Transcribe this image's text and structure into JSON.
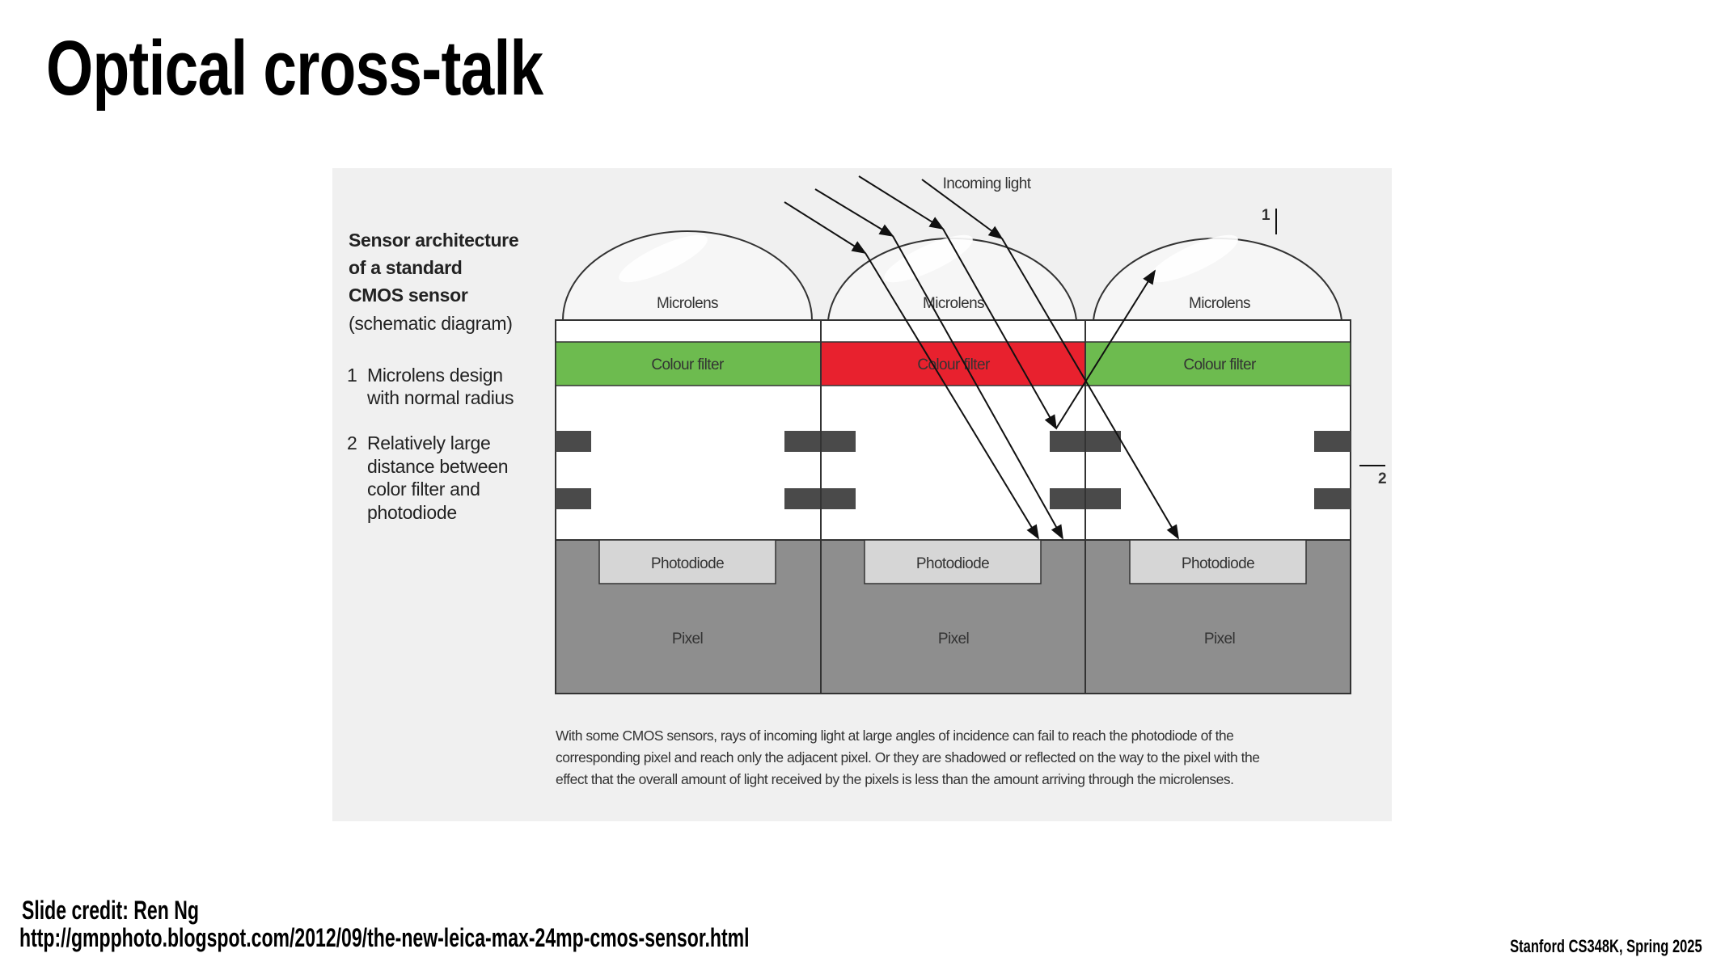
{
  "slide": {
    "title": "Optical cross-talk",
    "credit": "Slide credit: Ren Ng",
    "source_url": "http://gmpphoto.blogspot.com/2012/09/the-new-leica-max-24mp-cmos-sensor.html",
    "course": "Stanford CS348K, Spring 2025"
  },
  "diagram": {
    "heading_lines": [
      "Sensor architecture",
      "of a standard",
      "CMOS sensor"
    ],
    "subheading": "(schematic diagram)",
    "notes": [
      {
        "number": "1",
        "lines": [
          "Microlens design",
          "with normal radius"
        ]
      },
      {
        "number": "2",
        "lines": [
          "Relatively large",
          "distance between",
          "color filter and",
          "photodiode"
        ]
      }
    ],
    "incoming_light_label": "Incoming light",
    "marker_1": "1",
    "marker_2": "2",
    "pixels": [
      {
        "microlens": "Microlens",
        "filter": "Colour filter",
        "filter_color": "#6dbb4f",
        "photodiode": "Photodiode",
        "pixel": "Pixel"
      },
      {
        "microlens": "Microlens",
        "filter": "Colour filter",
        "filter_color": "#e8212e",
        "photodiode": "Photodiode",
        "pixel": "Pixel"
      },
      {
        "microlens": "Microlens",
        "filter": "Colour filter",
        "filter_color": "#6dbb4f",
        "photodiode": "Photodiode",
        "pixel": "Pixel"
      }
    ],
    "caption_lines": [
      "With some CMOS sensors, rays of incoming light at large angles of incidence can fail to reach the photodiode of the",
      "corresponding pixel and reach only the adjacent pixel. Or they are shadowed or reflected on the way to the pixel with the",
      "effect that the overall amount of light received by the pixels is less than the amount arriving through the microlenses."
    ],
    "colors": {
      "panel": "#f0f0f0",
      "pixel_gray": "#8e8e8e",
      "photodiode": "#d6d6d6",
      "metal": "#4a4a4a"
    }
  }
}
